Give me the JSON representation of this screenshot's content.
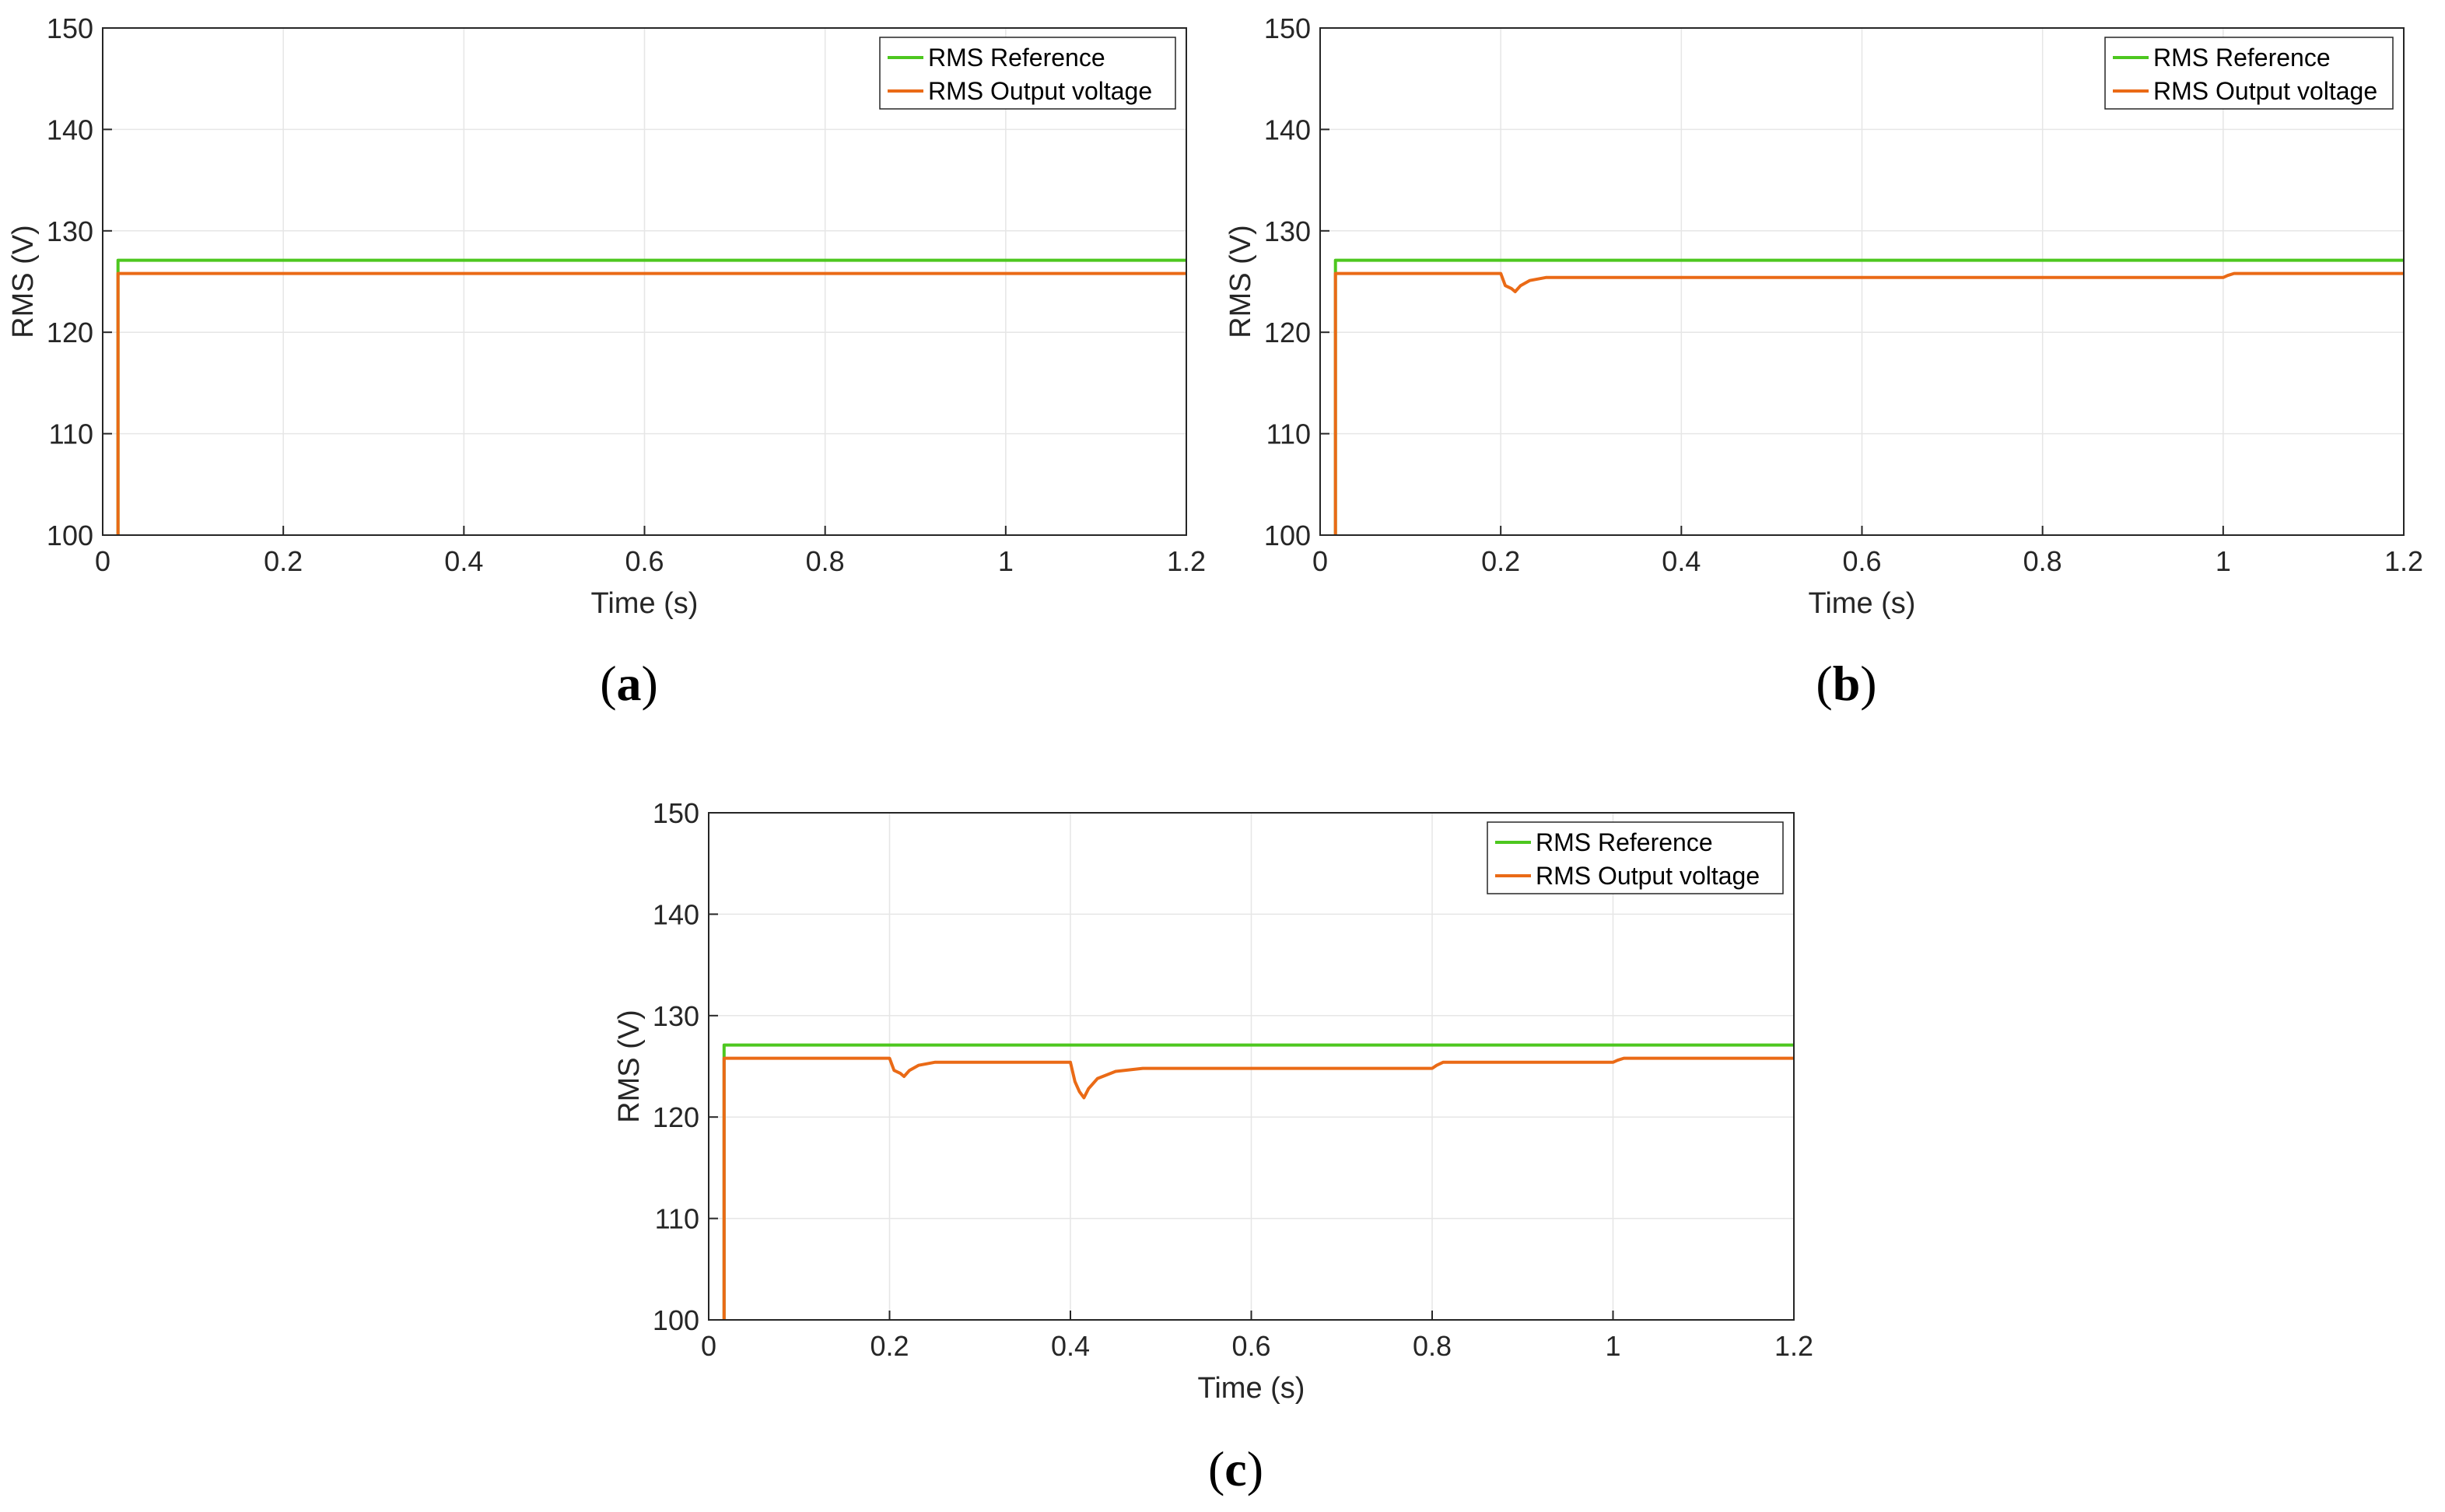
{
  "colors": {
    "reference": "#4dc71f",
    "output": "#ea6a16",
    "axis": "#262626",
    "grid": "#e6e6e6"
  },
  "chart_data": [
    {
      "type": "line",
      "panel_label": "a",
      "xlabel": "Time (s)",
      "ylabel": "RMS (V)",
      "xlim": [
        0,
        1.2
      ],
      "ylim": [
        100,
        150
      ],
      "xticks": [
        "0",
        "0.2",
        "0.4",
        "0.6",
        "0.8",
        "1",
        "1.2"
      ],
      "yticks": [
        "100",
        "110",
        "120",
        "130",
        "140",
        "150"
      ],
      "grid": true,
      "legend_position": "top-right",
      "series": [
        {
          "name": "RMS Reference",
          "color": "reference",
          "points": [
            [
              0.017,
              100
            ],
            [
              0.017,
              127.1
            ],
            [
              1.2,
              127.1
            ]
          ]
        },
        {
          "name": "RMS Output voltage",
          "color": "output",
          "points": [
            [
              0.017,
              100
            ],
            [
              0.017,
              125.8
            ],
            [
              1.2,
              125.8
            ]
          ]
        }
      ]
    },
    {
      "type": "line",
      "panel_label": "b",
      "xlabel": "Time (s)",
      "ylabel": "RMS (V)",
      "xlim": [
        0,
        1.2
      ],
      "ylim": [
        100,
        150
      ],
      "xticks": [
        "0",
        "0.2",
        "0.4",
        "0.6",
        "0.8",
        "1",
        "1.2"
      ],
      "yticks": [
        "100",
        "110",
        "120",
        "130",
        "140",
        "150"
      ],
      "grid": true,
      "legend_position": "top-right",
      "series": [
        {
          "name": "RMS Reference",
          "color": "reference",
          "points": [
            [
              0.017,
              100
            ],
            [
              0.017,
              127.1
            ],
            [
              1.2,
              127.1
            ]
          ]
        },
        {
          "name": "RMS Output voltage",
          "color": "output",
          "points": [
            [
              0.017,
              100
            ],
            [
              0.017,
              125.8
            ],
            [
              0.2,
              125.8
            ],
            [
              0.205,
              124.6
            ],
            [
              0.212,
              124.3
            ],
            [
              0.216,
              124.0
            ],
            [
              0.222,
              124.6
            ],
            [
              0.232,
              125.1
            ],
            [
              0.25,
              125.4
            ],
            [
              0.4,
              125.4
            ],
            [
              1.0,
              125.4
            ],
            [
              1.005,
              125.6
            ],
            [
              1.012,
              125.8
            ],
            [
              1.2,
              125.8
            ]
          ]
        }
      ]
    },
    {
      "type": "line",
      "panel_label": "c",
      "xlabel": "Time (s)",
      "ylabel": "RMS (V)",
      "xlim": [
        0,
        1.2
      ],
      "ylim": [
        100,
        150
      ],
      "xticks": [
        "0",
        "0.2",
        "0.4",
        "0.6",
        "0.8",
        "1",
        "1.2"
      ],
      "yticks": [
        "100",
        "110",
        "120",
        "130",
        "140",
        "150"
      ],
      "grid": true,
      "legend_position": "top-right",
      "series": [
        {
          "name": "RMS Reference",
          "color": "reference",
          "points": [
            [
              0.017,
              100
            ],
            [
              0.017,
              127.1
            ],
            [
              1.2,
              127.1
            ]
          ]
        },
        {
          "name": "RMS Output voltage",
          "color": "output",
          "points": [
            [
              0.017,
              100
            ],
            [
              0.017,
              125.8
            ],
            [
              0.2,
              125.8
            ],
            [
              0.205,
              124.6
            ],
            [
              0.212,
              124.3
            ],
            [
              0.216,
              124.0
            ],
            [
              0.222,
              124.6
            ],
            [
              0.232,
              125.1
            ],
            [
              0.25,
              125.4
            ],
            [
              0.4,
              125.4
            ],
            [
              0.405,
              123.5
            ],
            [
              0.41,
              122.5
            ],
            [
              0.415,
              121.9
            ],
            [
              0.42,
              122.8
            ],
            [
              0.43,
              123.8
            ],
            [
              0.45,
              124.5
            ],
            [
              0.48,
              124.8
            ],
            [
              0.8,
              124.8
            ],
            [
              0.805,
              125.1
            ],
            [
              0.812,
              125.4
            ],
            [
              1.0,
              125.4
            ],
            [
              1.005,
              125.6
            ],
            [
              1.012,
              125.8
            ],
            [
              1.2,
              125.8
            ]
          ]
        }
      ]
    }
  ],
  "legend_labels": [
    "RMS Reference",
    "RMS Output voltage"
  ]
}
